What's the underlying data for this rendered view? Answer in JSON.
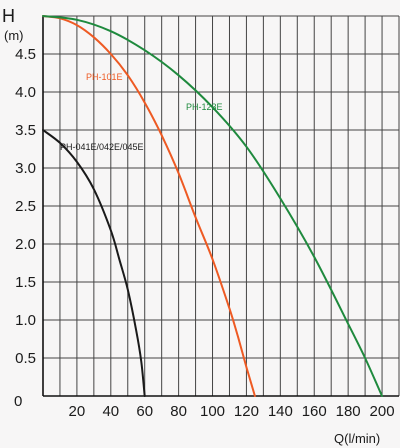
{
  "chart_data": {
    "type": "line",
    "ylabel": "H",
    "yunit": "(m)",
    "xlabel": "Q(l/min)",
    "xlim": [
      0,
      210
    ],
    "ylim": [
      0,
      5
    ],
    "x_ticks": [
      20,
      40,
      60,
      80,
      100,
      120,
      140,
      160,
      180,
      200
    ],
    "x_tick_labels": [
      "20",
      "40",
      "60",
      "80",
      "100",
      "120",
      "140",
      "160",
      "180",
      "200"
    ],
    "y_ticks": [
      0.5,
      1.0,
      1.5,
      2.0,
      2.5,
      3.0,
      3.5,
      4.0,
      4.5
    ],
    "y_tick_labels": [
      "0.5",
      "1.0",
      "1.5",
      "2.0",
      "2.5",
      "3.0",
      "3.5",
      "4.0",
      "4.5"
    ],
    "origin_label": "0",
    "grid": true,
    "series": [
      {
        "name": "PH-041E/042E/045E",
        "color": "#1a1a1a",
        "x": [
          0,
          10,
          20,
          30,
          40,
          45,
          50,
          55,
          58,
          60
        ],
        "y": [
          3.5,
          3.33,
          3.08,
          2.72,
          2.18,
          1.8,
          1.4,
          0.86,
          0.45,
          0
        ]
      },
      {
        "name": "PH-101E",
        "color": "#ee5a23",
        "x": [
          0,
          10,
          20,
          30,
          40,
          50,
          60,
          70,
          80,
          90,
          100,
          110,
          115,
          120,
          125
        ],
        "y": [
          5.0,
          4.97,
          4.88,
          4.72,
          4.5,
          4.22,
          3.86,
          3.43,
          2.93,
          2.35,
          1.8,
          1.15,
          0.78,
          0.38,
          0
        ]
      },
      {
        "name": "PH-123E",
        "color": "#1f8a3e",
        "x": [
          0,
          20,
          40,
          60,
          80,
          100,
          120,
          140,
          160,
          180,
          190,
          200
        ],
        "y": [
          5.0,
          4.95,
          4.8,
          4.55,
          4.22,
          3.8,
          3.28,
          2.6,
          1.83,
          0.95,
          0.5,
          0
        ]
      }
    ]
  }
}
